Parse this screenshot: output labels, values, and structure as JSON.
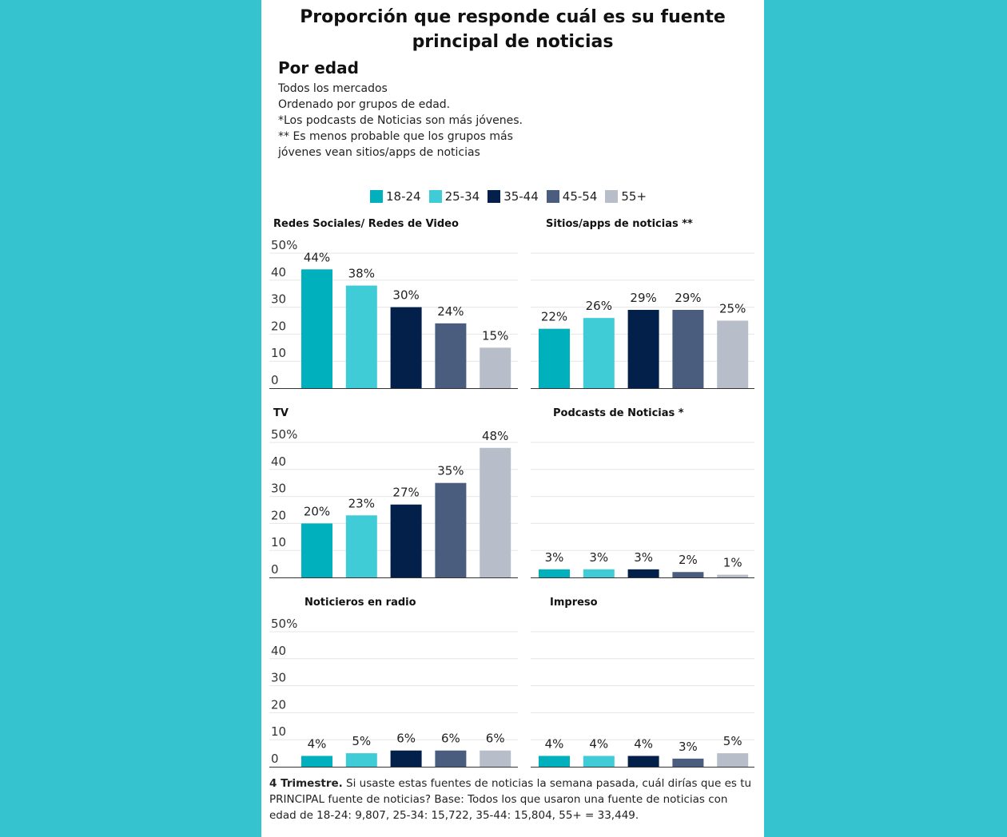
{
  "title": "Proporción que responde cuál es su fuente principal de noticias",
  "subtitle": "Por edad",
  "notes": [
    "Todos los mercados",
    "Ordenado por grupos de edad.",
    "*Los podcasts de Noticias son más jóvenes.",
    "** Es menos probable que los grupos más",
    "jóvenes vean sitios/apps de noticias"
  ],
  "legend": [
    {
      "label": "18-24",
      "color": "#00b0bc"
    },
    {
      "label": "25-34",
      "color": "#40ccd6"
    },
    {
      "label": "35-44",
      "color": "#03204a"
    },
    {
      "label": "45-54",
      "color": "#4a5d7e"
    },
    {
      "label": "55+",
      "color": "#b8bec9"
    }
  ],
  "footnote": {
    "bold": "4 Trimestre.",
    "text": " Si usaste estas fuentes de noticias la semana pasada, cuál dirías que es tu PRINCIPAL fuente de noticias? Base: Todos los que usaron una fuente de noticias con edad de 18-24: 9,807, 25-34: 15,722, 35-44: 15,804, 55+ = 33,449."
  },
  "chart_data": [
    {
      "type": "bar",
      "title": "Redes Sociales/ Redes de Video",
      "categories": [
        "18-24",
        "25-34",
        "35-44",
        "45-54",
        "55+"
      ],
      "values": [
        44,
        38,
        30,
        24,
        15
      ],
      "labels": [
        "44%",
        "38%",
        "30%",
        "24%",
        "15%"
      ],
      "ylim": [
        0,
        50
      ],
      "yticks": [
        "0",
        "10",
        "20",
        "30",
        "40",
        "50%"
      ],
      "show_yticks": true
    },
    {
      "type": "bar",
      "title": "Sitios/apps de noticias **",
      "categories": [
        "18-24",
        "25-34",
        "35-44",
        "45-54",
        "55+"
      ],
      "values": [
        22,
        26,
        29,
        29,
        25
      ],
      "labels": [
        "22%",
        "26%",
        "29%",
        "29%",
        "25%"
      ],
      "ylim": [
        0,
        50
      ],
      "yticks": [],
      "show_yticks": false
    },
    {
      "type": "bar",
      "title": "TV",
      "categories": [
        "18-24",
        "25-34",
        "35-44",
        "45-54",
        "55+"
      ],
      "values": [
        20,
        23,
        27,
        35,
        48
      ],
      "labels": [
        "20%",
        "23%",
        "27%",
        "35%",
        "48%"
      ],
      "ylim": [
        0,
        50
      ],
      "yticks": [
        "0",
        "10",
        "20",
        "30",
        "40",
        "50%"
      ],
      "show_yticks": true
    },
    {
      "type": "bar",
      "title": "Podcasts de Noticias *",
      "categories": [
        "18-24",
        "25-34",
        "35-44",
        "45-54",
        "55+"
      ],
      "values": [
        3,
        3,
        3,
        2,
        1
      ],
      "labels": [
        "3%",
        "3%",
        "3%",
        "2%",
        "1%"
      ],
      "ylim": [
        0,
        50
      ],
      "yticks": [],
      "show_yticks": false
    },
    {
      "type": "bar",
      "title": "Noticieros en radio",
      "categories": [
        "18-24",
        "25-34",
        "35-44",
        "45-54",
        "55+"
      ],
      "values": [
        4,
        5,
        6,
        6,
        6
      ],
      "labels": [
        "4%",
        "5%",
        "6%",
        "6%",
        "6%"
      ],
      "ylim": [
        0,
        50
      ],
      "yticks": [
        "0",
        "10",
        "20",
        "30",
        "40",
        "50%"
      ],
      "show_yticks": true
    },
    {
      "type": "bar",
      "title": "Impreso",
      "categories": [
        "18-24",
        "25-34",
        "35-44",
        "45-54",
        "55+"
      ],
      "values": [
        4,
        4,
        4,
        3,
        5
      ],
      "labels": [
        "4%",
        "4%",
        "4%",
        "3%",
        "5%"
      ],
      "ylim": [
        0,
        50
      ],
      "yticks": [],
      "show_yticks": false
    }
  ]
}
